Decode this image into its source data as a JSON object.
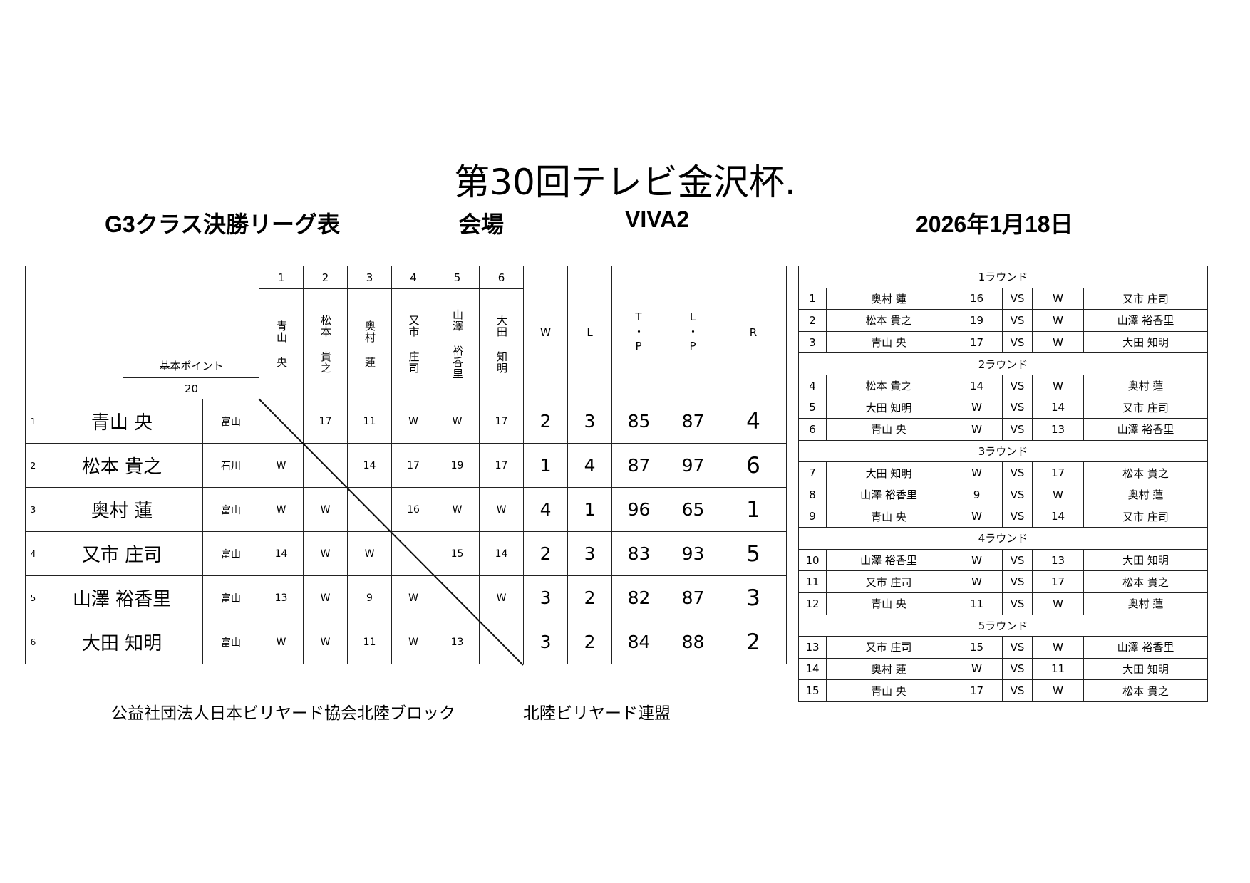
{
  "title": "第30回テレビ金沢杯.",
  "subtitle": {
    "class_label": "G3クラス決勝リーグ表",
    "venue_label": "会場",
    "venue": "VIVA2",
    "date": "2026年1月18日"
  },
  "league": {
    "column_numbers": [
      "1",
      "2",
      "3",
      "4",
      "5",
      "6"
    ],
    "column_names": [
      "青山 央",
      "松本 貴之",
      "奥村 蓮",
      "又市 庄司",
      "山澤 裕香里",
      "大田 知明"
    ],
    "headers": {
      "w": "W",
      "l": "L",
      "tp": "T・P",
      "lp": "L・P",
      "r": "R"
    },
    "base_points_label": "基本ポイント",
    "base_points": "20",
    "players": [
      {
        "rank": "1",
        "name": "青山 央",
        "pref": "富山",
        "results": [
          "",
          "17",
          "11",
          "W",
          "W",
          "17"
        ],
        "w": "2",
        "l": "3",
        "tp": "85",
        "lp": "87",
        "r": "4"
      },
      {
        "rank": "2",
        "name": "松本 貴之",
        "pref": "石川",
        "results": [
          "W",
          "",
          "14",
          "17",
          "19",
          "17"
        ],
        "w": "1",
        "l": "4",
        "tp": "87",
        "lp": "97",
        "r": "6"
      },
      {
        "rank": "3",
        "name": "奥村 蓮",
        "pref": "富山",
        "results": [
          "W",
          "W",
          "",
          "16",
          "W",
          "W"
        ],
        "w": "4",
        "l": "1",
        "tp": "96",
        "lp": "65",
        "r": "1"
      },
      {
        "rank": "4",
        "name": "又市 庄司",
        "pref": "富山",
        "results": [
          "14",
          "W",
          "W",
          "",
          "15",
          "14"
        ],
        "w": "2",
        "l": "3",
        "tp": "83",
        "lp": "93",
        "r": "5"
      },
      {
        "rank": "5",
        "name": "山澤 裕香里",
        "pref": "富山",
        "results": [
          "13",
          "W",
          "9",
          "W",
          "",
          "W"
        ],
        "w": "3",
        "l": "2",
        "tp": "82",
        "lp": "87",
        "r": "3"
      },
      {
        "rank": "6",
        "name": "大田 知明",
        "pref": "富山",
        "results": [
          "W",
          "W",
          "11",
          "W",
          "13",
          ""
        ],
        "w": "3",
        "l": "2",
        "tp": "84",
        "lp": "88",
        "r": "2"
      }
    ]
  },
  "schedule": {
    "rounds": [
      {
        "label": "1ラウンド",
        "matches": [
          {
            "no": "1",
            "p1": "奥村 蓮",
            "s1": "16",
            "vs": "VS",
            "s2": "W",
            "p2": "又市 庄司"
          },
          {
            "no": "2",
            "p1": "松本 貴之",
            "s1": "19",
            "vs": "VS",
            "s2": "W",
            "p2": "山澤 裕香里"
          },
          {
            "no": "3",
            "p1": "青山 央",
            "s1": "17",
            "vs": "VS",
            "s2": "W",
            "p2": "大田 知明"
          }
        ]
      },
      {
        "label": "2ラウンド",
        "matches": [
          {
            "no": "4",
            "p1": "松本 貴之",
            "s1": "14",
            "vs": "VS",
            "s2": "W",
            "p2": "奥村 蓮"
          },
          {
            "no": "5",
            "p1": "大田 知明",
            "s1": "W",
            "vs": "VS",
            "s2": "14",
            "p2": "又市 庄司"
          },
          {
            "no": "6",
            "p1": "青山 央",
            "s1": "W",
            "vs": "VS",
            "s2": "13",
            "p2": "山澤 裕香里"
          }
        ]
      },
      {
        "label": "3ラウンド",
        "matches": [
          {
            "no": "7",
            "p1": "大田 知明",
            "s1": "W",
            "vs": "VS",
            "s2": "17",
            "p2": "松本 貴之"
          },
          {
            "no": "8",
            "p1": "山澤 裕香里",
            "s1": "9",
            "vs": "VS",
            "s2": "W",
            "p2": "奥村 蓮"
          },
          {
            "no": "9",
            "p1": "青山 央",
            "s1": "W",
            "vs": "VS",
            "s2": "14",
            "p2": "又市 庄司"
          }
        ]
      },
      {
        "label": "4ラウンド",
        "matches": [
          {
            "no": "10",
            "p1": "山澤 裕香里",
            "s1": "W",
            "vs": "VS",
            "s2": "13",
            "p2": "大田 知明"
          },
          {
            "no": "11",
            "p1": "又市 庄司",
            "s1": "W",
            "vs": "VS",
            "s2": "17",
            "p2": "松本 貴之"
          },
          {
            "no": "12",
            "p1": "青山 央",
            "s1": "11",
            "vs": "VS",
            "s2": "W",
            "p2": "奥村 蓮"
          }
        ]
      },
      {
        "label": "5ラウンド",
        "matches": [
          {
            "no": "13",
            "p1": "又市 庄司",
            "s1": "15",
            "vs": "VS",
            "s2": "W",
            "p2": "山澤 裕香里"
          },
          {
            "no": "14",
            "p1": "奥村 蓮",
            "s1": "W",
            "vs": "VS",
            "s2": "11",
            "p2": "大田 知明"
          },
          {
            "no": "15",
            "p1": "青山 央",
            "s1": "17",
            "vs": "VS",
            "s2": "W",
            "p2": "松本 貴之"
          }
        ]
      }
    ]
  },
  "footer": {
    "organization": "公益社団法人日本ビリヤード協会北陸ブロック",
    "federation": "北陸ビリヤード連盟"
  }
}
